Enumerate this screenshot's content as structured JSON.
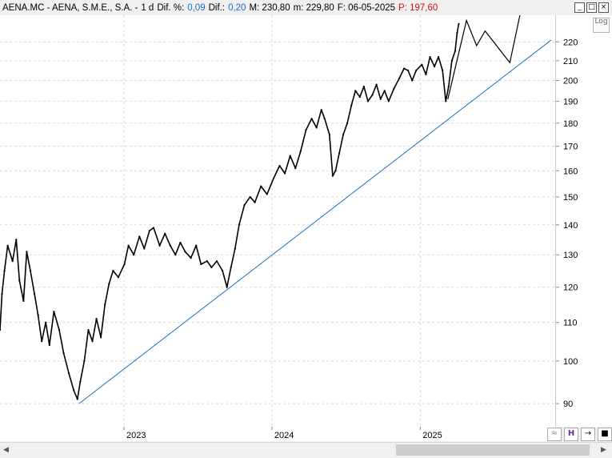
{
  "header": {
    "symbol": "AENA.MC - AENA, S.M.E., S.A. -",
    "period": "1 d",
    "dif_pct_label": "Dif. %:",
    "dif_pct_value": "0,09",
    "dif_label": "Dif.:",
    "dif_value": "0,20",
    "max_label": "M: 230,80",
    "min_label": "m: 229,80",
    "date_label": "F: 06-05-2025",
    "price_label": "P: 197,60"
  },
  "window_buttons": [
    "_",
    "□",
    "×"
  ],
  "log_button": "Log",
  "bottom_tools": [
    "≈",
    "H",
    "→",
    "■"
  ],
  "colors": {
    "price": "#000000",
    "trendline": "#1f6fbf",
    "blue_text": "#1a6fd0",
    "red_text": "#d01010",
    "grid": "#d9d9d9"
  },
  "chart_data": {
    "type": "line",
    "scale": "log",
    "ylim": [
      85,
      235
    ],
    "y_ticks": [
      90,
      100,
      110,
      120,
      130,
      140,
      150,
      160,
      170,
      180,
      190,
      200,
      210,
      220
    ],
    "x_ticks": [
      "2023",
      "2024",
      "2025"
    ],
    "xlim": [
      "2022-03-01",
      "2025-11-30"
    ],
    "grid": true,
    "series": [
      {
        "values": [
          [
            "2022-03-01",
            108
          ],
          [
            "2022-03-06",
            118
          ],
          [
            "2022-03-12",
            125
          ],
          [
            "2022-03-20",
            133
          ],
          [
            "2022-04-01",
            128
          ],
          [
            "2022-04-10",
            135
          ],
          [
            "2022-04-18",
            122
          ],
          [
            "2022-04-28",
            116
          ],
          [
            "2022-05-06",
            131
          ],
          [
            "2022-05-15",
            125
          ],
          [
            "2022-05-25",
            118
          ],
          [
            "2022-06-03",
            112
          ],
          [
            "2022-06-12",
            105
          ],
          [
            "2022-06-22",
            110
          ],
          [
            "2022-07-01",
            104
          ],
          [
            "2022-07-12",
            113
          ],
          [
            "2022-07-25",
            108
          ],
          [
            "2022-08-05",
            102
          ],
          [
            "2022-08-18",
            97
          ],
          [
            "2022-08-30",
            93
          ],
          [
            "2022-09-08",
            91
          ],
          [
            "2022-09-15",
            95
          ],
          [
            "2022-09-25",
            100
          ],
          [
            "2022-10-05",
            108
          ],
          [
            "2022-10-15",
            105
          ],
          [
            "2022-10-25",
            111
          ],
          [
            "2022-11-05",
            106
          ],
          [
            "2022-11-15",
            115
          ],
          [
            "2022-11-25",
            121
          ],
          [
            "2022-12-05",
            125
          ],
          [
            "2022-12-18",
            123
          ],
          [
            "2023-01-02",
            127
          ],
          [
            "2023-01-12",
            133
          ],
          [
            "2023-01-25",
            130
          ],
          [
            "2023-02-08",
            136
          ],
          [
            "2023-02-20",
            132
          ],
          [
            "2023-03-05",
            138
          ],
          [
            "2023-03-15",
            139
          ],
          [
            "2023-03-30",
            133
          ],
          [
            "2023-04-12",
            137
          ],
          [
            "2023-04-25",
            133
          ],
          [
            "2023-05-08",
            130
          ],
          [
            "2023-05-20",
            134
          ],
          [
            "2023-06-01",
            131
          ],
          [
            "2023-06-15",
            129
          ],
          [
            "2023-06-28",
            133
          ],
          [
            "2023-07-10",
            127
          ],
          [
            "2023-07-25",
            128
          ],
          [
            "2023-08-05",
            126
          ],
          [
            "2023-08-18",
            128
          ],
          [
            "2023-09-01",
            125
          ],
          [
            "2023-09-12",
            120
          ],
          [
            "2023-09-22",
            126
          ],
          [
            "2023-10-02",
            132
          ],
          [
            "2023-10-12",
            140
          ],
          [
            "2023-10-25",
            147
          ],
          [
            "2023-11-08",
            150
          ],
          [
            "2023-11-20",
            148
          ],
          [
            "2023-12-05",
            154
          ],
          [
            "2023-12-20",
            151
          ],
          [
            "2024-01-05",
            157
          ],
          [
            "2024-01-20",
            162
          ],
          [
            "2024-02-02",
            159
          ],
          [
            "2024-02-15",
            166
          ],
          [
            "2024-02-28",
            161
          ],
          [
            "2024-03-12",
            168
          ],
          [
            "2024-03-25",
            177
          ],
          [
            "2024-04-08",
            182
          ],
          [
            "2024-04-20",
            178
          ],
          [
            "2024-05-02",
            186
          ],
          [
            "2024-05-10",
            182
          ],
          [
            "2024-05-22",
            175
          ],
          [
            "2024-05-30",
            158
          ],
          [
            "2024-06-06",
            160
          ],
          [
            "2024-06-15",
            167
          ],
          [
            "2024-06-25",
            175
          ],
          [
            "2024-07-05",
            180
          ],
          [
            "2024-07-15",
            188
          ],
          [
            "2024-07-25",
            195
          ],
          [
            "2024-08-05",
            192
          ],
          [
            "2024-08-15",
            197
          ],
          [
            "2024-08-25",
            190
          ],
          [
            "2024-09-05",
            193
          ],
          [
            "2024-09-15",
            198
          ],
          [
            "2024-09-25",
            191
          ],
          [
            "2024-10-05",
            195
          ],
          [
            "2024-10-15",
            190
          ],
          [
            "2024-10-28",
            196
          ],
          [
            "2024-11-10",
            201
          ],
          [
            "2024-11-22",
            206
          ],
          [
            "2024-12-02",
            205
          ],
          [
            "2024-12-12",
            200
          ],
          [
            "2024-12-22",
            205
          ],
          [
            "2025-01-05",
            208
          ],
          [
            "2025-01-15",
            203
          ],
          [
            "2025-01-25",
            212
          ],
          [
            "2025-02-05",
            207
          ],
          [
            "2025-02-15",
            212
          ],
          [
            "2025-02-25",
            205
          ],
          [
            "2025-03-05",
            190
          ],
          [
            "2025-03-12",
            197
          ],
          [
            "2025-03-20",
            210
          ],
          [
            "2025-03-28",
            215
          ],
          [
            "2025-04-02",
            225
          ],
          [
            "2025-04-06",
            230
          ]
        ]
      }
    ],
    "projection": [
      [
        "2025-03-10",
        191
      ],
      [
        "2025-04-25",
        232
      ],
      [
        "2025-05-20",
        218
      ],
      [
        "2025-06-10",
        226
      ],
      [
        "2025-08-10",
        209
      ],
      [
        "2025-09-10",
        242
      ]
    ],
    "trendline": [
      [
        "2022-09-12",
        90
      ],
      [
        "2025-11-20",
        221
      ]
    ]
  }
}
